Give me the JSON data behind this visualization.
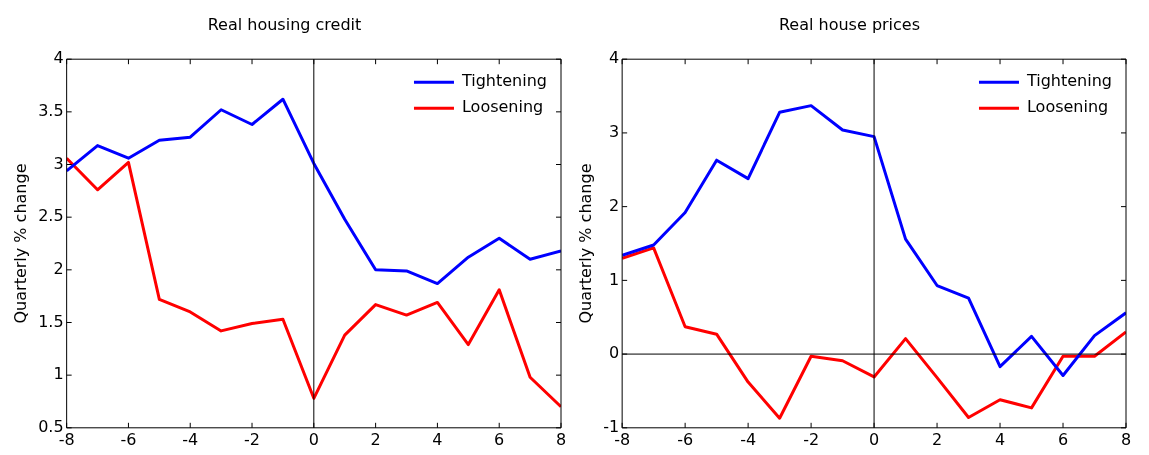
{
  "chart_data": [
    {
      "type": "line",
      "title": "Real housing credit",
      "ylabel": "Quarterly % change",
      "x": [
        -8,
        -7,
        -6,
        -5,
        -4,
        -3,
        -2,
        -1,
        0,
        1,
        2,
        3,
        4,
        5,
        6,
        7,
        8
      ],
      "series": [
        {
          "name": "Tightening",
          "color": "#0000ff",
          "values": [
            2.94,
            3.18,
            3.06,
            3.23,
            3.26,
            3.52,
            3.38,
            3.62,
            3.01,
            2.48,
            2.0,
            1.99,
            1.87,
            2.12,
            2.3,
            2.1,
            2.18
          ]
        },
        {
          "name": "Loosening",
          "color": "#ff0000",
          "values": [
            3.06,
            2.76,
            3.02,
            1.72,
            1.6,
            1.42,
            1.49,
            1.53,
            0.78,
            1.38,
            1.67,
            1.57,
            1.69,
            1.29,
            1.81,
            0.98,
            0.7
          ]
        }
      ],
      "xlim": [
        -8,
        8
      ],
      "xticks": [
        -8,
        -6,
        -4,
        -2,
        0,
        2,
        4,
        6,
        8
      ],
      "ylim": [
        0.5,
        4
      ],
      "yticks": [
        0.5,
        1,
        1.5,
        2,
        2.5,
        3,
        3.5,
        4
      ],
      "ref_lines": [
        {
          "axis": "x",
          "value": 0,
          "color": "#000000"
        }
      ],
      "grid": false,
      "legend": "top right",
      "line_style": "solid",
      "marker": "none"
    },
    {
      "type": "line",
      "title": "Real house prices",
      "ylabel": "Quarterly % change",
      "x": [
        -8,
        -7,
        -6,
        -5,
        -4,
        -3,
        -2,
        -1,
        0,
        1,
        2,
        3,
        4,
        5,
        6,
        7,
        8
      ],
      "series": [
        {
          "name": "Tightening",
          "color": "#0000ff",
          "values": [
            1.34,
            1.48,
            1.92,
            2.63,
            2.38,
            3.28,
            3.37,
            3.04,
            2.95,
            1.56,
            0.93,
            0.76,
            -0.17,
            0.24,
            -0.29,
            0.25,
            0.56
          ]
        },
        {
          "name": "Loosening",
          "color": "#ff0000",
          "values": [
            1.3,
            1.44,
            0.37,
            0.27,
            -0.38,
            -0.87,
            -0.03,
            -0.09,
            -0.31,
            0.21,
            -0.32,
            -0.86,
            -0.62,
            -0.73,
            -0.03,
            -0.03,
            0.3
          ]
        }
      ],
      "xlim": [
        -8,
        8
      ],
      "xticks": [
        -8,
        -6,
        -4,
        -2,
        0,
        2,
        4,
        6,
        8
      ],
      "ylim": [
        -1,
        4
      ],
      "yticks": [
        -1,
        0,
        1,
        2,
        3,
        4
      ],
      "ref_lines": [
        {
          "axis": "x",
          "value": 0,
          "color": "#000000"
        },
        {
          "axis": "y",
          "value": 0,
          "color": "#000000"
        }
      ],
      "grid": false,
      "legend": "top right",
      "line_style": "solid",
      "marker": "none"
    }
  ]
}
